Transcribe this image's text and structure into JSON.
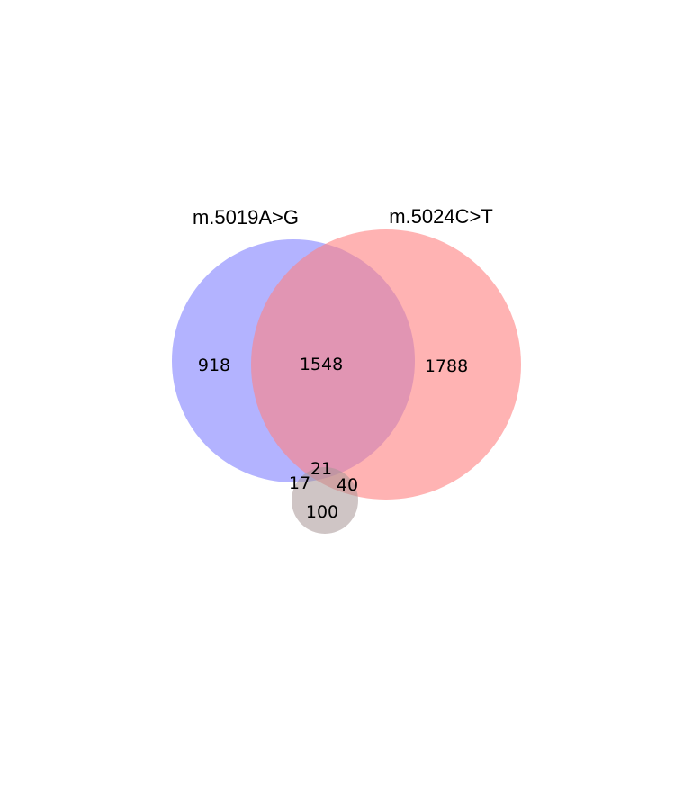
{
  "diagram": {
    "type": "venn",
    "sets": [
      {
        "id": "a",
        "label": "m.5019A>G",
        "color": "#8080ff"
      },
      {
        "id": "b",
        "label": "m.5024C>T",
        "color": "#ff8080"
      },
      {
        "id": "c",
        "label": "",
        "color": "#a89595"
      }
    ],
    "regions": [
      {
        "id": "a-only",
        "value": "918"
      },
      {
        "id": "a-and-b",
        "value": "1548"
      },
      {
        "id": "b-only",
        "value": "1788"
      },
      {
        "id": "a-b-c",
        "value": "21"
      },
      {
        "id": "a-and-c",
        "value": "17"
      },
      {
        "id": "b-and-c",
        "value": "40"
      },
      {
        "id": "c-only",
        "value": "100"
      }
    ]
  }
}
